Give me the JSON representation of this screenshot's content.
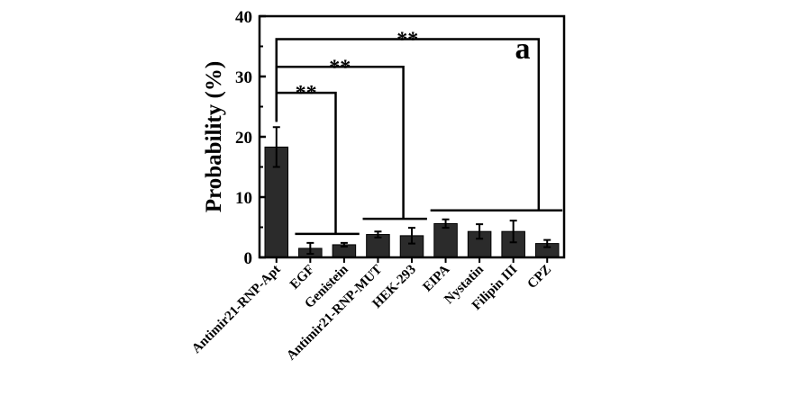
{
  "chart_data": {
    "type": "bar",
    "categories": [
      "Antimir21-RNP-Apt",
      "EGF",
      "Genistein",
      "Antimir21-RNP-MUT",
      "HEK-293",
      "EIPA",
      "Nystatin",
      "Filipin III",
      "CPZ"
    ],
    "values": [
      18.3,
      1.5,
      2.1,
      3.8,
      3.6,
      5.6,
      4.3,
      4.3,
      2.3
    ],
    "errors": [
      3.3,
      0.9,
      0.3,
      0.5,
      1.3,
      0.7,
      1.2,
      1.8,
      0.6
    ],
    "ylabel": "Probability (%)",
    "ylim": [
      0,
      40
    ],
    "yticks": [
      0,
      10,
      20,
      30,
      40
    ],
    "panel_label": "a",
    "bar_color": "#2b2b2b",
    "grid": false,
    "legend": "none",
    "significance": [
      {
        "label": "**",
        "reference": 0,
        "groups": [
          1,
          2
        ],
        "level": 27.3
      },
      {
        "label": "**",
        "reference": 0,
        "groups": [
          3,
          4
        ],
        "level": 31.6
      },
      {
        "label": "**",
        "reference": 0,
        "groups": [
          5,
          6,
          7,
          8
        ],
        "level": 36.2
      }
    ]
  }
}
